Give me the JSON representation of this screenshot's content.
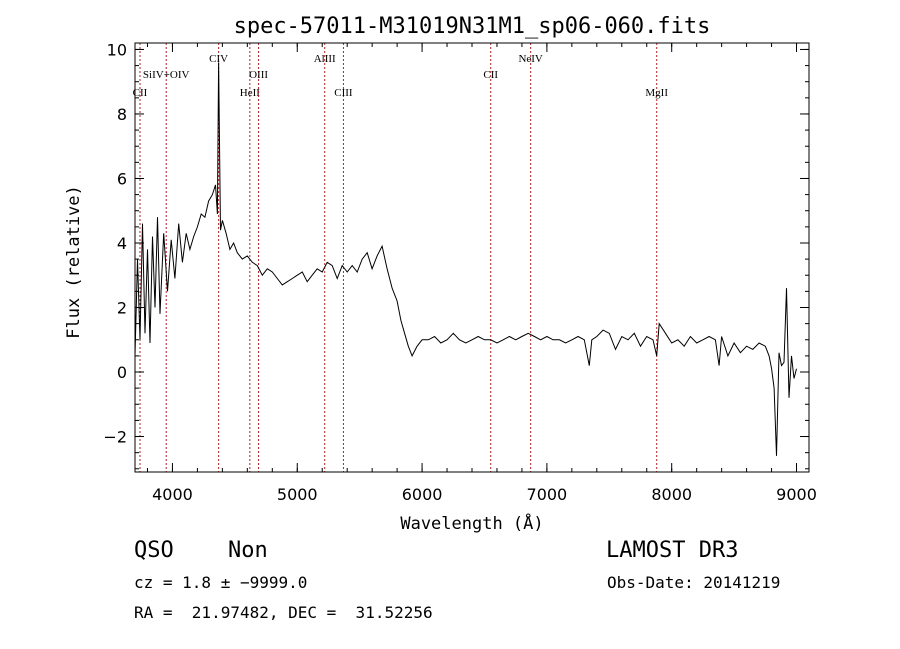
{
  "chart_data": {
    "type": "line",
    "title": "spec-57011-M31019N31M1_sp06-060.fits",
    "xlabel": "Wavelength (Å)",
    "ylabel": "Flux (relative)",
    "xlim": [
      3700,
      9100
    ],
    "ylim": [
      -3.1,
      10.2
    ],
    "xticks": [
      4000,
      5000,
      6000,
      7000,
      8000,
      9000
    ],
    "yticks": [
      -2,
      0,
      2,
      4,
      6,
      8,
      10
    ],
    "xtick_labels": [
      "4000",
      "5000",
      "6000",
      "7000",
      "8000",
      "9000"
    ],
    "ytick_labels": [
      "−2",
      "0",
      "2",
      "4",
      "6",
      "8",
      "10"
    ],
    "grid": false,
    "series": [
      {
        "x": [
          3700,
          3720,
          3740,
          3760,
          3780,
          3800,
          3820,
          3840,
          3860,
          3880,
          3900,
          3930,
          3960,
          3990,
          4020,
          4050,
          4080,
          4110,
          4140,
          4170,
          4200,
          4230,
          4260,
          4290,
          4320,
          4345,
          4360,
          4370,
          4385,
          4400,
          4430,
          4460,
          4490,
          4520,
          4560,
          4600,
          4640,
          4680,
          4720,
          4760,
          4800,
          4840,
          4880,
          4920,
          4960,
          5000,
          5040,
          5080,
          5120,
          5160,
          5200,
          5240,
          5280,
          5320,
          5360,
          5400,
          5440,
          5480,
          5520,
          5560,
          5600,
          5640,
          5680,
          5720,
          5760,
          5800,
          5830,
          5860,
          5890,
          5920,
          5960,
          6000,
          6050,
          6100,
          6150,
          6200,
          6250,
          6300,
          6350,
          6400,
          6450,
          6500,
          6550,
          6600,
          6650,
          6700,
          6750,
          6800,
          6850,
          6900,
          6950,
          7000,
          7050,
          7100,
          7150,
          7200,
          7250,
          7300,
          7340,
          7360,
          7400,
          7450,
          7500,
          7550,
          7600,
          7650,
          7700,
          7750,
          7800,
          7850,
          7880,
          7900,
          7950,
          8000,
          8050,
          8100,
          8150,
          8200,
          8250,
          8300,
          8350,
          8380,
          8400,
          8450,
          8500,
          8550,
          8600,
          8650,
          8700,
          8750,
          8780,
          8800,
          8820,
          8840,
          8860,
          8880,
          8900,
          8920,
          8940,
          8960,
          8980,
          9000
        ],
        "y": [
          0.5,
          3.5,
          1.0,
          4.6,
          1.2,
          3.8,
          0.9,
          4.2,
          2.0,
          4.8,
          1.8,
          4.3,
          2.5,
          4.1,
          2.9,
          4.6,
          3.4,
          4.3,
          3.8,
          4.2,
          4.5,
          4.9,
          4.8,
          5.3,
          5.5,
          5.8,
          4.9,
          9.6,
          4.4,
          4.7,
          4.3,
          3.8,
          4.0,
          3.7,
          3.5,
          3.6,
          3.4,
          3.3,
          3.0,
          3.2,
          3.1,
          2.9,
          2.7,
          2.8,
          2.9,
          3.0,
          3.1,
          2.8,
          3.0,
          3.2,
          3.1,
          3.4,
          3.3,
          2.9,
          3.3,
          3.1,
          3.3,
          3.1,
          3.5,
          3.7,
          3.2,
          3.6,
          3.9,
          3.2,
          2.6,
          2.2,
          1.6,
          1.2,
          0.8,
          0.5,
          0.8,
          1.0,
          1.0,
          1.1,
          0.9,
          1.0,
          1.2,
          1.0,
          0.9,
          1.0,
          1.1,
          1.0,
          1.0,
          0.9,
          1.0,
          1.1,
          1.0,
          1.1,
          1.2,
          1.1,
          1.0,
          1.1,
          1.0,
          1.0,
          0.9,
          1.0,
          1.1,
          1.0,
          0.2,
          1.0,
          1.1,
          1.3,
          1.2,
          0.7,
          1.1,
          1.0,
          1.2,
          0.8,
          1.1,
          1.0,
          0.5,
          1.5,
          1.2,
          0.9,
          1.0,
          0.8,
          1.1,
          0.9,
          1.0,
          1.1,
          1.0,
          0.2,
          1.1,
          0.5,
          0.9,
          0.6,
          0.8,
          0.7,
          0.9,
          0.8,
          0.5,
          0.1,
          -0.5,
          -2.6,
          0.6,
          0.2,
          0.3,
          2.6,
          -0.8,
          0.5,
          -0.2,
          0.1
        ]
      }
    ],
    "emission_lines": [
      {
        "name": "CII",
        "wavelength": 3740,
        "row": 3
      },
      {
        "name": "SiIV+OIV",
        "wavelength": 3950,
        "row": 2
      },
      {
        "name": "CIV",
        "wavelength": 4370,
        "row": 1
      },
      {
        "name": "HeII",
        "wavelength": 4620,
        "row": 3
      },
      {
        "name": "OIII",
        "wavelength": 4690,
        "row": 2
      },
      {
        "name": "AlIII",
        "wavelength": 5220,
        "row": 1
      },
      {
        "name": "CIII",
        "wavelength": 5370,
        "row": 3
      },
      {
        "name": "CII",
        "wavelength": 6550,
        "row": 2
      },
      {
        "name": "NeIV",
        "wavelength": 6870,
        "row": 1
      },
      {
        "name": "MgII",
        "wavelength": 7880,
        "row": 3
      }
    ]
  },
  "info": {
    "class": "QSO",
    "subclass": "Non",
    "survey": "LAMOST DR3",
    "cz": "cz = 1.8 ± −9999.0",
    "obs_date": "Obs-Date: 20141219",
    "radec": "RA =  21.97482, DEC =  31.52256"
  }
}
